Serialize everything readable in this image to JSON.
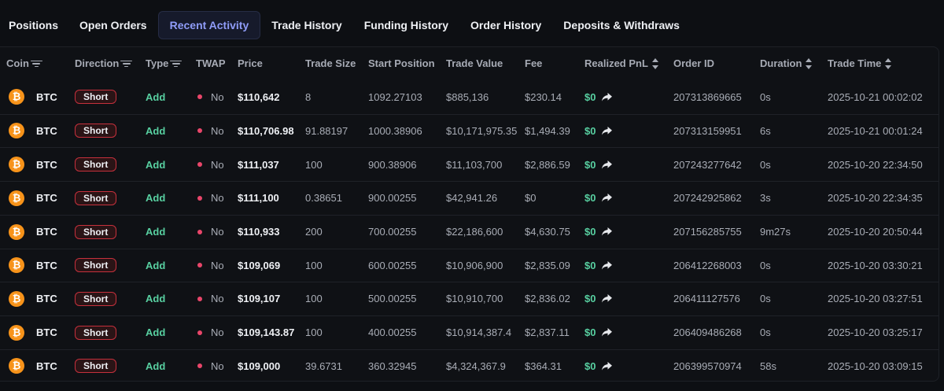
{
  "tabs": [
    {
      "label": "Positions",
      "active": false
    },
    {
      "label": "Open Orders",
      "active": false
    },
    {
      "label": "Recent Activity",
      "active": true
    },
    {
      "label": "Trade History",
      "active": false
    },
    {
      "label": "Funding History",
      "active": false
    },
    {
      "label": "Order History",
      "active": false
    },
    {
      "label": "Deposits & Withdraws",
      "active": false
    }
  ],
  "columns": {
    "coin": "Coin",
    "direction": "Direction",
    "type": "Type",
    "twap": "TWAP",
    "price": "Price",
    "trade_size": "Trade Size",
    "start_position": "Start Position",
    "trade_value": "Trade Value",
    "fee": "Fee",
    "realized_pnl": "Realized PnL",
    "order_id": "Order ID",
    "duration": "Duration",
    "trade_time": "Trade Time"
  },
  "colors": {
    "accent": "#8f9cf8",
    "positive": "#58d0a1",
    "negative": "#c6303c",
    "coin": "#f7931a",
    "twap_dot": "#e9466a"
  },
  "coin_icon_glyph": "₿",
  "rows": [
    {
      "coin": "BTC",
      "direction": "Short",
      "type": "Add",
      "twap": "No",
      "price": "$110,642",
      "trade_size": "8",
      "start_position": "1092.27103",
      "trade_value": "$885,136",
      "fee": "$230.14",
      "realized_pnl": "$0",
      "order_id": "207313869665",
      "duration": "0s",
      "trade_time": "2025-10-21 00:02:02"
    },
    {
      "coin": "BTC",
      "direction": "Short",
      "type": "Add",
      "twap": "No",
      "price": "$110,706.98",
      "trade_size": "91.88197",
      "start_position": "1000.38906",
      "trade_value": "$10,171,975.35",
      "fee": "$1,494.39",
      "realized_pnl": "$0",
      "order_id": "207313159951",
      "duration": "6s",
      "trade_time": "2025-10-21 00:01:24"
    },
    {
      "coin": "BTC",
      "direction": "Short",
      "type": "Add",
      "twap": "No",
      "price": "$111,037",
      "trade_size": "100",
      "start_position": "900.38906",
      "trade_value": "$11,103,700",
      "fee": "$2,886.59",
      "realized_pnl": "$0",
      "order_id": "207243277642",
      "duration": "0s",
      "trade_time": "2025-10-20 22:34:50"
    },
    {
      "coin": "BTC",
      "direction": "Short",
      "type": "Add",
      "twap": "No",
      "price": "$111,100",
      "trade_size": "0.38651",
      "start_position": "900.00255",
      "trade_value": "$42,941.26",
      "fee": "$0",
      "realized_pnl": "$0",
      "order_id": "207242925862",
      "duration": "3s",
      "trade_time": "2025-10-20 22:34:35"
    },
    {
      "coin": "BTC",
      "direction": "Short",
      "type": "Add",
      "twap": "No",
      "price": "$110,933",
      "trade_size": "200",
      "start_position": "700.00255",
      "trade_value": "$22,186,600",
      "fee": "$4,630.75",
      "realized_pnl": "$0",
      "order_id": "207156285755",
      "duration": "9m27s",
      "trade_time": "2025-10-20 20:50:44"
    },
    {
      "coin": "BTC",
      "direction": "Short",
      "type": "Add",
      "twap": "No",
      "price": "$109,069",
      "trade_size": "100",
      "start_position": "600.00255",
      "trade_value": "$10,906,900",
      "fee": "$2,835.09",
      "realized_pnl": "$0",
      "order_id": "206412268003",
      "duration": "0s",
      "trade_time": "2025-10-20 03:30:21"
    },
    {
      "coin": "BTC",
      "direction": "Short",
      "type": "Add",
      "twap": "No",
      "price": "$109,107",
      "trade_size": "100",
      "start_position": "500.00255",
      "trade_value": "$10,910,700",
      "fee": "$2,836.02",
      "realized_pnl": "$0",
      "order_id": "206411127576",
      "duration": "0s",
      "trade_time": "2025-10-20 03:27:51"
    },
    {
      "coin": "BTC",
      "direction": "Short",
      "type": "Add",
      "twap": "No",
      "price": "$109,143.87",
      "trade_size": "100",
      "start_position": "400.00255",
      "trade_value": "$10,914,387.4",
      "fee": "$2,837.11",
      "realized_pnl": "$0",
      "order_id": "206409486268",
      "duration": "0s",
      "trade_time": "2025-10-20 03:25:17"
    },
    {
      "coin": "BTC",
      "direction": "Short",
      "type": "Add",
      "twap": "No",
      "price": "$109,000",
      "trade_size": "39.6731",
      "start_position": "360.32945",
      "trade_value": "$4,324,367.9",
      "fee": "$364.31",
      "realized_pnl": "$0",
      "order_id": "206399570974",
      "duration": "58s",
      "trade_time": "2025-10-20 03:09:15"
    }
  ]
}
